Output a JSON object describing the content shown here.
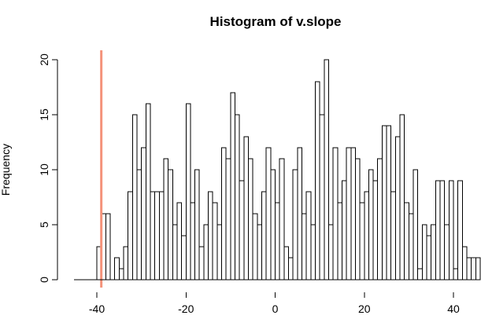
{
  "chart_data": {
    "type": "bar",
    "title": "Histogram of v.slope",
    "xlabel": "",
    "ylabel": "Frequency",
    "xlim": [
      -45,
      45
    ],
    "ylim": [
      0,
      20
    ],
    "bin_width": 1,
    "x_ticks": [
      -40,
      -20,
      0,
      20,
      40
    ],
    "y_ticks": [
      0,
      5,
      10,
      15,
      20
    ],
    "x_tick_labels": [
      "-40",
      "-20",
      "0",
      "20",
      "40"
    ],
    "y_tick_labels": [
      "0",
      "5",
      "10",
      "15",
      "20"
    ],
    "bins": {
      "start": -40,
      "counts": [
        3,
        6,
        6,
        0,
        2,
        1,
        3,
        8,
        15,
        10,
        12,
        16,
        8,
        8,
        8,
        11,
        10,
        5,
        7,
        4,
        16,
        7,
        10,
        3,
        5,
        8,
        7,
        5,
        12,
        11,
        17,
        15,
        9,
        13,
        11,
        6,
        5,
        8,
        12,
        10,
        7,
        11,
        3,
        2,
        10,
        12,
        6,
        8,
        5,
        18,
        15,
        20,
        5,
        12,
        7,
        9,
        12,
        12,
        11,
        7,
        8,
        10,
        9,
        11,
        14,
        14,
        8,
        13,
        15,
        7,
        6,
        10,
        1,
        5,
        4,
        5,
        9,
        9,
        5,
        9,
        1,
        9,
        3,
        2,
        2,
        2
      ]
    },
    "reference_line": {
      "x": -39,
      "color": "#f4937a"
    },
    "grid": false
  }
}
